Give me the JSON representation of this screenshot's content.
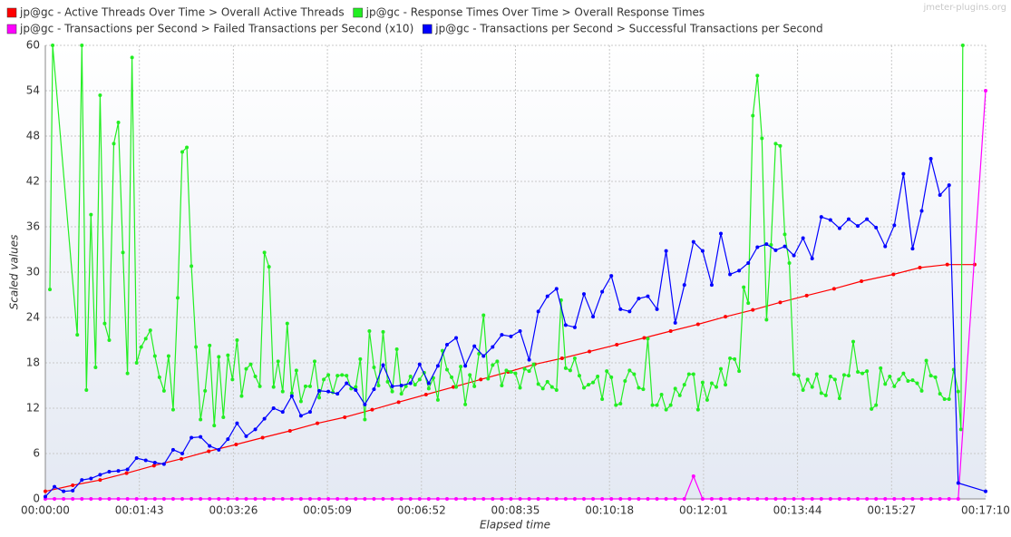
{
  "chart_data": {
    "type": "line",
    "watermark": "jmeter-plugins.org",
    "xlabel": "Elapsed time",
    "ylabel": "Scaled values",
    "xlim": [
      0,
      1030
    ],
    "xticks": [
      {
        "value": 0,
        "label": "00:00:00"
      },
      {
        "value": 103,
        "label": "00:01:43"
      },
      {
        "value": 206,
        "label": "00:03:26"
      },
      {
        "value": 309,
        "label": "00:05:09"
      },
      {
        "value": 412,
        "label": "00:06:52"
      },
      {
        "value": 515,
        "label": "00:08:35"
      },
      {
        "value": 618,
        "label": "00:10:18"
      },
      {
        "value": 721,
        "label": "00:12:01"
      },
      {
        "value": 824,
        "label": "00:13:44"
      },
      {
        "value": 927,
        "label": "00:15:27"
      },
      {
        "value": 1030,
        "label": "00:17:10"
      }
    ],
    "ylim": [
      0,
      60
    ],
    "yticks": [
      0,
      6,
      12,
      18,
      24,
      30,
      36,
      42,
      48,
      54,
      60
    ],
    "grid": true,
    "legend": "top",
    "series": [
      {
        "name": "jp@gc - Active Threads Over Time > Overall Active Threads",
        "color": "#ff0000",
        "x": [
          0,
          30,
          60,
          89,
          119,
          149,
          179,
          209,
          238,
          268,
          298,
          328,
          358,
          387,
          417,
          447,
          477,
          507,
          536,
          566,
          596,
          626,
          656,
          685,
          715,
          745,
          775,
          805,
          834,
          864,
          894,
          929,
          958,
          988,
          1018
        ],
        "values": [
          1,
          1.8,
          2.5,
          3.4,
          4.4,
          5.3,
          6.3,
          7.2,
          8.1,
          9,
          10,
          10.8,
          11.8,
          12.8,
          13.8,
          14.8,
          15.8,
          16.8,
          17.8,
          18.6,
          19.5,
          20.4,
          21.3,
          22.2,
          23.1,
          24.1,
          25,
          26,
          26.9,
          27.8,
          28.8,
          29.7,
          30.6,
          31,
          31
        ]
      },
      {
        "name": "jp@gc - Response Times Over Time > Overall Response Times",
        "color": "#22ee22",
        "x": [
          5,
          8,
          35,
          40,
          45,
          50,
          55,
          60,
          65,
          70,
          75,
          80,
          85,
          90,
          95,
          100,
          105,
          110,
          115,
          120,
          125,
          130,
          135,
          140,
          145,
          150,
          155,
          160,
          165,
          170,
          175,
          180,
          185,
          190,
          195,
          200,
          205,
          210,
          215,
          220,
          225,
          230,
          235,
          240,
          245,
          250,
          255,
          260,
          265,
          270,
          275,
          280,
          285,
          290,
          295,
          300,
          305,
          310,
          315,
          320,
          325,
          330,
          335,
          340,
          345,
          350,
          355,
          360,
          365,
          370,
          375,
          380,
          385,
          390,
          395,
          400,
          405,
          410,
          415,
          420,
          425,
          430,
          435,
          440,
          445,
          450,
          455,
          460,
          465,
          470,
          475,
          480,
          485,
          490,
          495,
          500,
          505,
          510,
          515,
          520,
          525,
          530,
          535,
          540,
          545,
          550,
          555,
          560,
          565,
          570,
          575,
          580,
          585,
          590,
          595,
          600,
          605,
          610,
          615,
          620,
          625,
          630,
          635,
          640,
          645,
          650,
          655,
          660,
          665,
          670,
          675,
          680,
          685,
          690,
          695,
          700,
          705,
          710,
          715,
          720,
          725,
          730,
          735,
          740,
          745,
          750,
          755,
          760,
          765,
          770,
          775,
          780,
          785,
          790,
          795,
          800,
          805,
          810,
          815,
          820,
          825,
          830,
          835,
          840,
          845,
          850,
          855,
          860,
          865,
          870,
          875,
          880,
          885,
          890,
          895,
          900,
          905,
          910,
          915,
          920,
          925,
          930,
          935,
          940,
          945,
          950,
          955,
          960,
          965,
          970,
          975,
          980,
          985,
          990,
          995,
          1000,
          1003,
          1005
        ],
        "values": [
          27.7,
          60,
          21.7,
          60,
          14.4,
          37.6,
          17.4,
          53.4,
          23.2,
          21.0,
          47.0,
          49.8,
          32.6,
          16.6,
          58.4,
          18.0,
          20.1,
          21.2,
          22.3,
          18.9,
          16.1,
          14.3,
          18.9,
          11.8,
          26.6,
          45.9,
          46.5,
          30.8,
          20.1,
          10.5,
          14.3,
          20.3,
          9.7,
          18.8,
          10.8,
          19.0,
          15.8,
          21.0,
          13.6,
          17.2,
          17.8,
          16.2,
          14.9,
          32.6,
          30.7,
          14.8,
          18.2,
          14.2,
          23.2,
          14.0,
          17.0,
          12.9,
          14.9,
          14.9,
          18.2,
          13.4,
          15.8,
          16.4,
          14.1,
          16.3,
          16.4,
          16.3,
          14.6,
          14.8,
          18.5,
          10.5,
          22.2,
          17.4,
          15.0,
          22.1,
          15.5,
          14.2,
          19.8,
          13.9,
          14.9,
          16.2,
          15.1,
          15.8,
          16.7,
          14.6,
          16.0,
          13.1,
          19.6,
          17.1,
          16.1,
          14.8,
          17.5,
          12.5,
          16.4,
          14.9,
          19.2,
          24.3,
          15.9,
          17.7,
          18.2,
          15.0,
          17.0,
          16.8,
          16.6,
          14.7,
          17.2,
          16.9,
          17.8,
          15.2,
          14.6,
          15.5,
          14.8,
          14.4,
          26.3,
          17.3,
          17.0,
          18.6,
          16.3,
          14.7,
          15.1,
          15.4,
          16.2,
          13.2,
          16.9,
          16.1,
          12.4,
          12.6,
          15.6,
          17.0,
          16.5,
          14.7,
          14.5,
          21.2,
          12.4,
          12.4,
          13.8,
          11.8,
          12.4,
          14.6,
          13.7,
          15.1,
          16.5,
          16.5,
          11.8,
          15.4,
          13.1,
          15.3,
          14.8,
          17.2,
          15.1,
          18.6,
          18.5,
          16.9,
          28.0,
          25.9,
          50.7,
          56.0,
          47.7,
          23.7,
          33.6,
          47.0,
          46.7,
          35.0,
          31.2,
          16.5,
          16.3,
          14.4,
          15.8,
          14.8,
          16.5,
          14.0,
          13.7,
          16.2,
          15.8,
          13.3,
          16.4,
          16.3,
          20.8,
          16.8,
          16.6,
          16.9,
          11.9,
          12.4,
          17.3,
          15.2,
          16.2,
          14.9,
          15.8,
          16.6,
          15.6,
          15.7,
          15.3,
          14.3,
          18.3,
          16.3,
          16.1,
          13.9,
          13.2,
          13.2,
          17.1,
          14.2,
          9.2,
          60
        ]
      },
      {
        "name": "jp@gc - Transactions per Second > Failed Transactions per Second (x10)",
        "color": "#ff00ff",
        "x": [
          0,
          10,
          20,
          30,
          40,
          50,
          60,
          70,
          80,
          90,
          100,
          110,
          120,
          130,
          140,
          150,
          160,
          170,
          180,
          190,
          200,
          210,
          220,
          230,
          240,
          250,
          260,
          270,
          280,
          290,
          300,
          310,
          320,
          330,
          340,
          350,
          360,
          370,
          380,
          390,
          400,
          410,
          420,
          430,
          440,
          450,
          460,
          470,
          480,
          490,
          500,
          510,
          520,
          530,
          540,
          550,
          560,
          570,
          580,
          590,
          600,
          610,
          620,
          630,
          640,
          650,
          660,
          670,
          680,
          690,
          700,
          710,
          720,
          730,
          740,
          750,
          760,
          770,
          780,
          790,
          800,
          810,
          820,
          830,
          840,
          850,
          860,
          870,
          880,
          890,
          900,
          910,
          920,
          930,
          940,
          950,
          960,
          970,
          980,
          990,
          1000,
          1030
        ],
        "values": [
          0,
          0,
          0,
          0,
          0,
          0,
          0,
          0,
          0,
          0,
          0,
          0,
          0,
          0,
          0,
          0,
          0,
          0,
          0,
          0,
          0,
          0,
          0,
          0,
          0,
          0,
          0,
          0,
          0,
          0,
          0,
          0,
          0,
          0,
          0,
          0,
          0,
          0,
          0,
          0,
          0,
          0,
          0,
          0,
          0,
          0,
          0,
          0,
          0,
          0,
          0,
          0,
          0,
          0,
          0,
          0,
          0,
          0,
          0,
          0,
          0,
          0,
          0,
          0,
          0,
          0,
          0,
          0,
          0,
          0,
          0,
          3,
          0,
          0,
          0,
          0,
          0,
          0,
          0,
          0,
          0,
          0,
          0,
          0,
          0,
          0,
          0,
          0,
          0,
          0,
          0,
          0,
          0,
          0,
          0,
          0,
          0,
          0,
          0,
          0,
          0,
          54
        ]
      },
      {
        "name": "jp@gc - Transactions per Second > Successful Transactions per Second",
        "color": "#0000ff",
        "x": [
          0,
          10,
          20,
          30,
          40,
          50,
          60,
          70,
          80,
          90,
          100,
          110,
          120,
          130,
          140,
          150,
          160,
          170,
          180,
          190,
          200,
          210,
          220,
          230,
          240,
          250,
          260,
          270,
          280,
          290,
          300,
          310,
          320,
          330,
          340,
          350,
          360,
          370,
          380,
          390,
          400,
          410,
          420,
          430,
          440,
          450,
          460,
          470,
          480,
          490,
          500,
          510,
          520,
          530,
          540,
          550,
          560,
          570,
          580,
          590,
          600,
          610,
          620,
          630,
          640,
          650,
          660,
          670,
          680,
          690,
          700,
          710,
          720,
          730,
          740,
          750,
          760,
          770,
          780,
          790,
          800,
          810,
          820,
          830,
          840,
          850,
          860,
          870,
          880,
          890,
          900,
          910,
          920,
          930,
          940,
          950,
          960,
          970,
          980,
          990,
          1000,
          1030
        ],
        "values": [
          0.3,
          1.6,
          1.0,
          1.1,
          2.5,
          2.7,
          3.2,
          3.6,
          3.7,
          3.9,
          5.4,
          5.1,
          4.8,
          4.6,
          6.5,
          6.0,
          8.1,
          8.2,
          7.0,
          6.5,
          7.9,
          10.0,
          8.3,
          9.2,
          10.6,
          12.0,
          11.5,
          13.6,
          11.0,
          11.5,
          14.3,
          14.2,
          13.9,
          15.3,
          14.4,
          12.5,
          14.5,
          17.7,
          14.9,
          15.0,
          15.3,
          17.8,
          15.3,
          17.6,
          20.4,
          21.3,
          17.6,
          20.2,
          18.9,
          20.1,
          21.7,
          21.5,
          22.2,
          18.4,
          24.8,
          26.8,
          27.8,
          23.0,
          22.7,
          27.1,
          24.1,
          27.4,
          29.5,
          25.1,
          24.8,
          26.5,
          26.8,
          25.1,
          32.8,
          23.3,
          28.3,
          34.0,
          32.8,
          28.3,
          35.1,
          29.7,
          30.2,
          31.2,
          33.3,
          33.7,
          32.9,
          33.4,
          32.2,
          34.5,
          31.8,
          37.3,
          36.9,
          35.8,
          37.0,
          36.1,
          37.0,
          35.9,
          33.4,
          36.2,
          43.0,
          33.1,
          38.1,
          45.0,
          40.2,
          41.5,
          2.1,
          1.0
        ]
      }
    ]
  }
}
